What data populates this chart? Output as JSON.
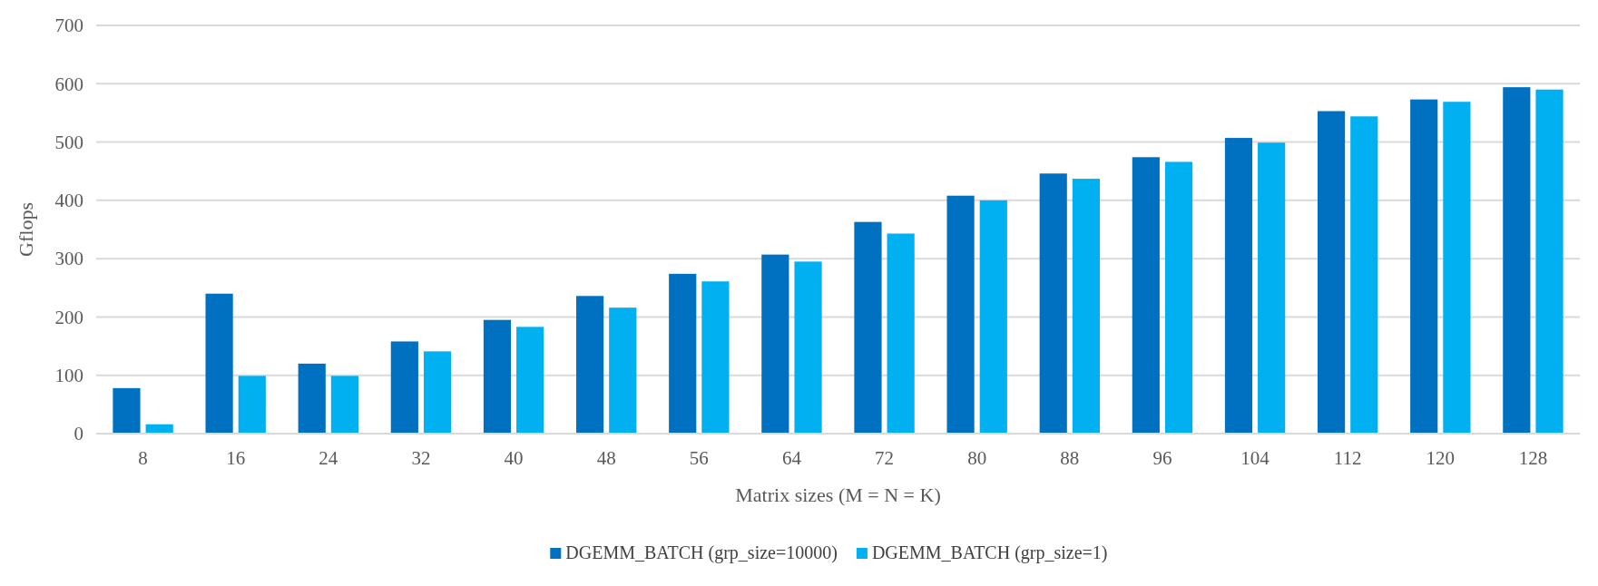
{
  "chart_data": {
    "type": "bar",
    "xlabel": "Matrix sizes (M = N = K)",
    "ylabel": "Gflops",
    "categories": [
      "8",
      "16",
      "24",
      "32",
      "40",
      "48",
      "56",
      "64",
      "72",
      "80",
      "88",
      "96",
      "104",
      "112",
      "120",
      "128"
    ],
    "series": [
      {
        "name": "DGEMM_BATCH (grp_size=10000)",
        "color": "#0070c0",
        "values": [
          78,
          240,
          120,
          158,
          195,
          236,
          274,
          307,
          363,
          408,
          446,
          474,
          507,
          553,
          573,
          594
        ]
      },
      {
        "name": "DGEMM_BATCH (grp_size=1)",
        "color": "#00b0f0",
        "values": [
          16,
          99,
          99,
          141,
          183,
          216,
          261,
          295,
          343,
          400,
          437,
          466,
          499,
          544,
          569,
          590
        ]
      }
    ],
    "ylim": [
      0,
      700
    ],
    "yticks": [
      0,
      100,
      200,
      300,
      400,
      500,
      600,
      700
    ],
    "grid": "y",
    "legend": "bottom"
  }
}
